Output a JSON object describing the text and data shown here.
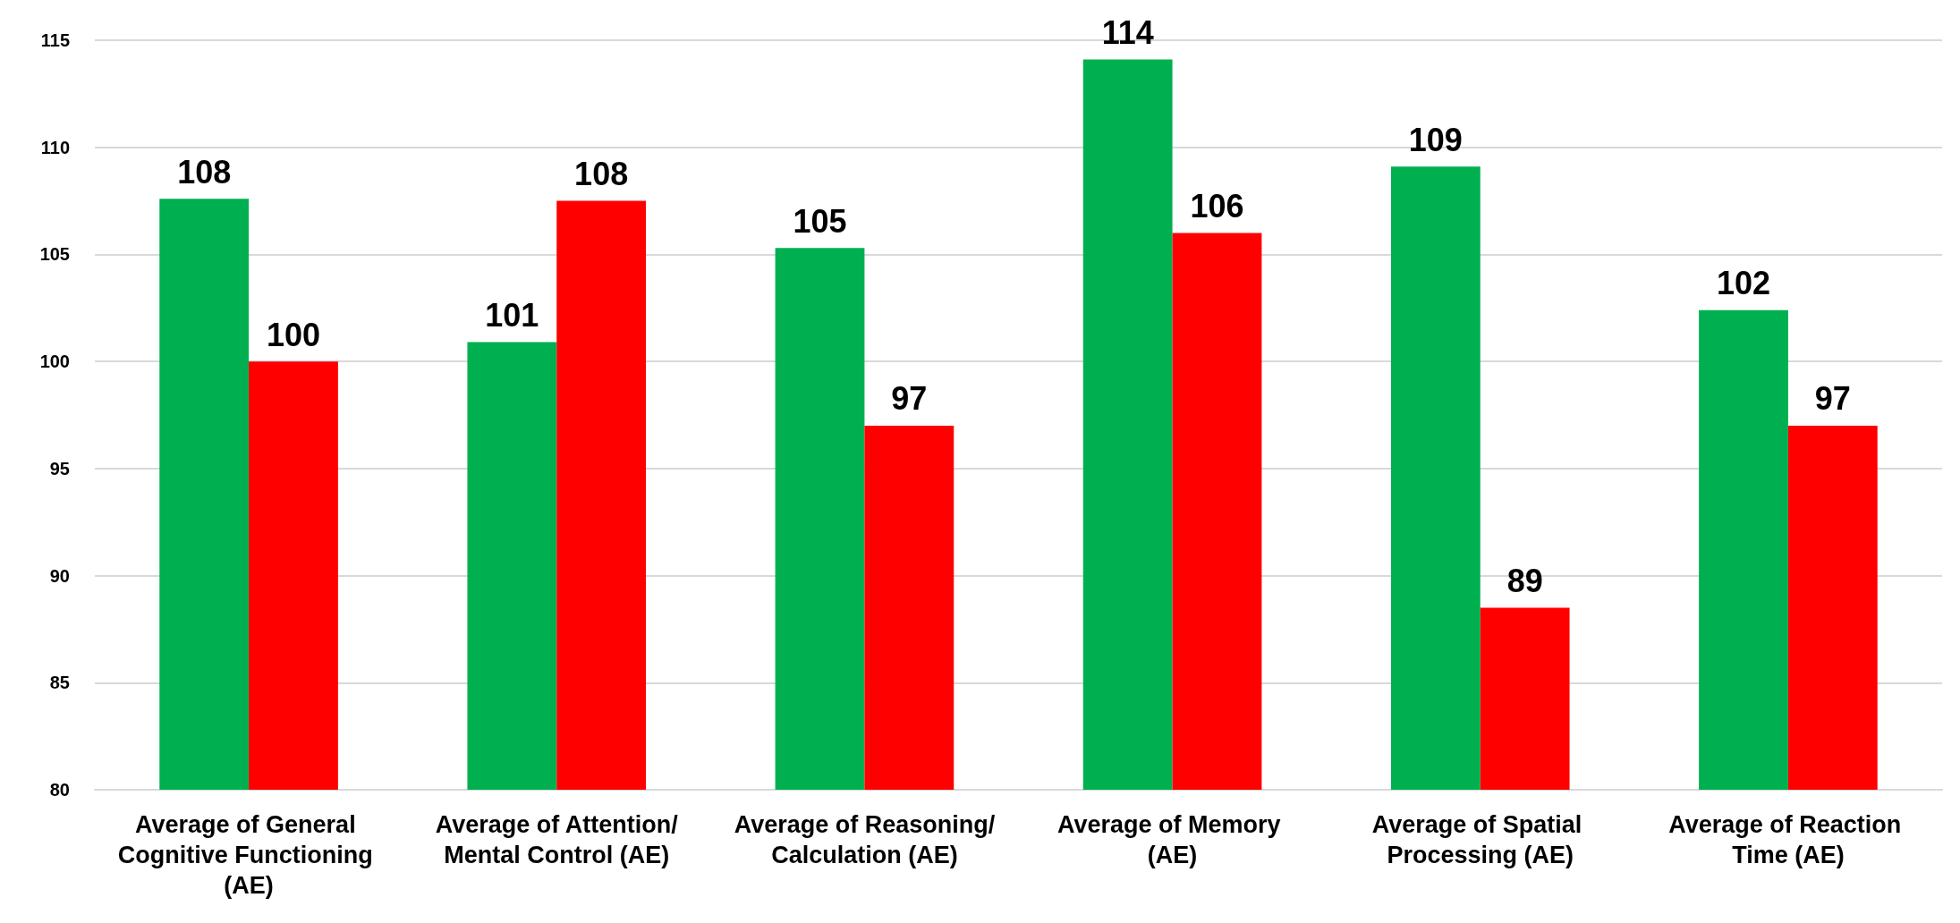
{
  "chart_data": {
    "type": "bar",
    "categories": [
      "Average of General Cognitive Functioning (AE)",
      "Average of Attention/Mental Control (AE)",
      "Average of Reasoning/Calculation (AE)",
      "Average of Memory (AE)",
      "Average of Spatial Processing (AE)",
      "Average of Reaction Time (AE)"
    ],
    "series": [
      {
        "color": "#00b050",
        "values": [
          107.6,
          100.9,
          105.3,
          114.1,
          109.1,
          102.4
        ],
        "value_labels": [
          "108",
          "101",
          "105",
          "114",
          "109",
          "102"
        ]
      },
      {
        "color": "#ff0000",
        "values": [
          100.0,
          107.5,
          97.0,
          106.0,
          88.5,
          97.0
        ],
        "value_labels": [
          "100",
          "108",
          "97",
          "106",
          "89",
          "97"
        ]
      }
    ],
    "ylim": [
      80,
      115
    ],
    "yticks": [
      80,
      85,
      90,
      95,
      100,
      105,
      110,
      115
    ],
    "grid": "y"
  }
}
